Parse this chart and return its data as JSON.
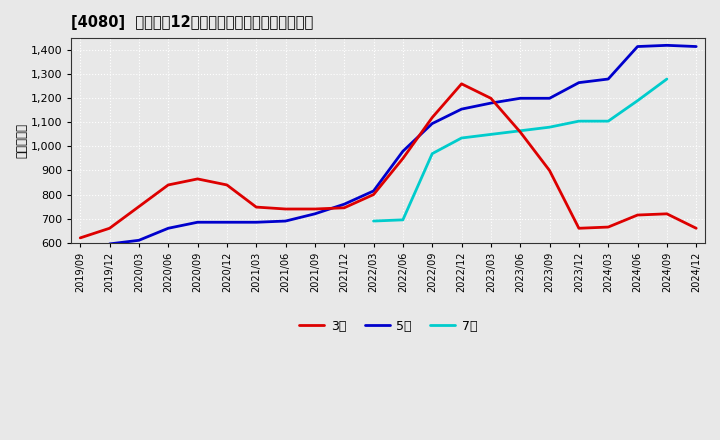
{
  "title": "[4080]  経常利益12か月移動合計の標準偏差の推移",
  "ylabel": "（百万円）",
  "ylim": [
    600,
    1450
  ],
  "yticks": [
    600,
    700,
    800,
    900,
    1000,
    1100,
    1200,
    1300,
    1400
  ],
  "bg_color": "#e8e8e8",
  "plot_bg_color": "#e8e8e8",
  "series": {
    "3year": {
      "color": "#dd0000",
      "label": "3年",
      "points": [
        [
          "2019-09",
          620
        ],
        [
          "2019-12",
          660
        ],
        [
          "2020-03",
          750
        ],
        [
          "2020-06",
          840
        ],
        [
          "2020-09",
          865
        ],
        [
          "2020-12",
          840
        ],
        [
          "2021-03",
          748
        ],
        [
          "2021-06",
          740
        ],
        [
          "2021-09",
          740
        ],
        [
          "2021-12",
          745
        ],
        [
          "2022-03",
          800
        ],
        [
          "2022-06",
          950
        ],
        [
          "2022-09",
          1120
        ],
        [
          "2022-12",
          1260
        ],
        [
          "2023-03",
          1200
        ],
        [
          "2023-06",
          1060
        ],
        [
          "2023-09",
          900
        ],
        [
          "2023-12",
          660
        ],
        [
          "2024-03",
          665
        ],
        [
          "2024-06",
          715
        ],
        [
          "2024-09",
          720
        ],
        [
          "2024-12",
          660
        ]
      ]
    },
    "5year": {
      "color": "#0000cc",
      "label": "5年",
      "points": [
        [
          "2019-09",
          null
        ],
        [
          "2019-12",
          595
        ],
        [
          "2020-03",
          610
        ],
        [
          "2020-06",
          660
        ],
        [
          "2020-09",
          685
        ],
        [
          "2020-12",
          685
        ],
        [
          "2021-03",
          685
        ],
        [
          "2021-06",
          690
        ],
        [
          "2021-09",
          720
        ],
        [
          "2021-12",
          760
        ],
        [
          "2022-03",
          815
        ],
        [
          "2022-06",
          980
        ],
        [
          "2022-09",
          1095
        ],
        [
          "2022-12",
          1155
        ],
        [
          "2023-03",
          1180
        ],
        [
          "2023-06",
          1200
        ],
        [
          "2023-09",
          1200
        ],
        [
          "2023-12",
          1265
        ],
        [
          "2024-03",
          1280
        ],
        [
          "2024-06",
          1415
        ],
        [
          "2024-09",
          1420
        ],
        [
          "2024-12",
          1415
        ]
      ]
    },
    "7year": {
      "color": "#00cccc",
      "label": "7年",
      "points": [
        [
          "2019-09",
          null
        ],
        [
          "2019-12",
          null
        ],
        [
          "2020-03",
          null
        ],
        [
          "2020-06",
          null
        ],
        [
          "2020-09",
          null
        ],
        [
          "2020-12",
          null
        ],
        [
          "2021-03",
          null
        ],
        [
          "2021-06",
          null
        ],
        [
          "2021-09",
          null
        ],
        [
          "2021-12",
          null
        ],
        [
          "2022-03",
          690
        ],
        [
          "2022-06",
          695
        ],
        [
          "2022-09",
          970
        ],
        [
          "2022-12",
          1035
        ],
        [
          "2023-03",
          1050
        ],
        [
          "2023-06",
          1065
        ],
        [
          "2023-09",
          1080
        ],
        [
          "2023-12",
          1105
        ],
        [
          "2024-03",
          1105
        ],
        [
          "2024-06",
          1190
        ],
        [
          "2024-09",
          1280
        ],
        [
          "2024-12",
          null
        ]
      ]
    },
    "10year": {
      "color": "#006600",
      "points": [
        [
          "2019-09",
          null
        ],
        [
          "2019-12",
          null
        ],
        [
          "2020-03",
          null
        ],
        [
          "2020-06",
          null
        ],
        [
          "2020-09",
          null
        ],
        [
          "2020-12",
          null
        ],
        [
          "2021-03",
          null
        ],
        [
          "2021-06",
          null
        ],
        [
          "2021-09",
          null
        ],
        [
          "2021-12",
          null
        ],
        [
          "2022-03",
          null
        ],
        [
          "2022-06",
          null
        ],
        [
          "2022-09",
          null
        ],
        [
          "2022-12",
          null
        ],
        [
          "2023-03",
          null
        ],
        [
          "2023-06",
          null
        ],
        [
          "2023-09",
          null
        ],
        [
          "2023-12",
          null
        ],
        [
          "2024-03",
          null
        ],
        [
          "2024-06",
          null
        ],
        [
          "2024-09",
          null
        ],
        [
          "2024-12",
          null
        ]
      ]
    }
  },
  "xtick_labels": [
    "2019/09",
    "2019/12",
    "2020/03",
    "2020/06",
    "2020/09",
    "2020/12",
    "2021/03",
    "2021/06",
    "2021/09",
    "2021/12",
    "2022/03",
    "2022/06",
    "2022/09",
    "2022/12",
    "2023/03",
    "2023/06",
    "2023/09",
    "2023/12",
    "2024/03",
    "2024/06",
    "2024/09",
    "2024/12"
  ]
}
